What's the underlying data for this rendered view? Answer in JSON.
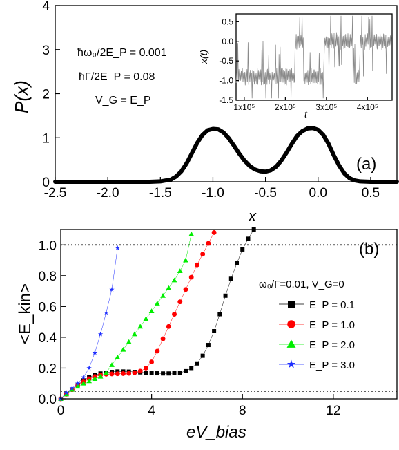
{
  "chart_data": [
    {
      "panel": "a",
      "type": "line",
      "panel_label": "(a)",
      "xlabel": "x",
      "ylabel": "P(x)",
      "xlim": [
        -2.5,
        0.75
      ],
      "ylim": [
        0,
        4
      ],
      "xticks": [
        -2.5,
        -2.0,
        -1.5,
        -1.0,
        -0.5,
        0.0,
        0.5
      ],
      "xtick_labels": [
        "-2.5",
        "-2.0",
        "-1.5",
        "-1.0",
        "-0.5",
        "0.0",
        "0.5"
      ],
      "yticks": [
        0,
        1,
        2,
        3,
        4
      ],
      "ytick_labels": [
        "0",
        "1",
        "2",
        "3",
        "4"
      ],
      "annotations": [
        "ħω₀/2E_P = 0.001",
        "ħΓ/2E_P = 0.08",
        "V_G = E_P"
      ],
      "series": [
        {
          "x": [
            -2.5,
            -1.6,
            -1.5,
            -1.4,
            -1.35,
            -1.3,
            -1.25,
            -1.2,
            -1.15,
            -1.1,
            -1.05,
            -1.0,
            -0.95,
            -0.9,
            -0.85,
            -0.8,
            -0.75,
            -0.7,
            -0.65,
            -0.6,
            -0.55,
            -0.5,
            -0.45,
            -0.4,
            -0.35,
            -0.3,
            -0.25,
            -0.2,
            -0.15,
            -0.1,
            -0.05,
            0.0,
            0.05,
            0.1,
            0.15,
            0.2,
            0.25,
            0.3,
            0.35,
            0.4,
            0.5,
            0.6,
            0.75
          ],
          "y": [
            0.0,
            0.0,
            0.01,
            0.05,
            0.12,
            0.24,
            0.42,
            0.65,
            0.88,
            1.06,
            1.17,
            1.2,
            1.19,
            1.12,
            0.99,
            0.82,
            0.64,
            0.48,
            0.36,
            0.28,
            0.24,
            0.23,
            0.26,
            0.34,
            0.48,
            0.66,
            0.86,
            1.04,
            1.15,
            1.21,
            1.22,
            1.18,
            1.06,
            0.86,
            0.6,
            0.37,
            0.19,
            0.08,
            0.03,
            0.01,
            0.0,
            0.0,
            0.0
          ]
        }
      ],
      "inset": {
        "type": "line",
        "xlabel": "t",
        "ylabel": "x(t)",
        "xlim": [
          80000,
          460000
        ],
        "ylim": [
          -1.5,
          0.7
        ],
        "xticks": [
          100000,
          200000,
          300000,
          400000
        ],
        "xtick_labels": [
          "1x10⁵",
          "2x10⁵",
          "3x10⁵",
          "4x10⁵"
        ],
        "yticks": [
          0.5,
          0.0,
          -0.5,
          -1.0,
          -1.5
        ],
        "ytick_labels": [
          "0.5",
          "0.0",
          "-0.5",
          "-1.0",
          "-1.5"
        ],
        "color": "#8a8a8a",
        "level_segments": [
          {
            "t0": 80000,
            "t1": 225000,
            "level": -0.9
          },
          {
            "t0": 225000,
            "t1": 245000,
            "level": 0.0
          },
          {
            "t0": 245000,
            "t1": 295000,
            "level": -0.9
          },
          {
            "t0": 295000,
            "t1": 365000,
            "level": 0.0
          },
          {
            "t0": 365000,
            "t1": 382000,
            "level": -0.9
          },
          {
            "t0": 382000,
            "t1": 460000,
            "level": 0.0
          }
        ]
      }
    },
    {
      "panel": "b",
      "type": "scatter",
      "panel_label": "(b)",
      "xlabel": "eV_bias",
      "ylabel": "<E_kin>",
      "xlim": [
        0,
        14.8
      ],
      "ylim": [
        0,
        1.1
      ],
      "xticks": [
        0,
        4,
        8,
        12
      ],
      "xtick_labels": [
        "0",
        "4",
        "8",
        "12"
      ],
      "yticks": [
        0.0,
        0.2,
        0.4,
        0.6,
        0.8,
        1.0
      ],
      "ytick_labels": [
        "0.0",
        "0.2",
        "0.4",
        "0.6",
        "0.8",
        "1.0"
      ],
      "hlines": [
        1.0,
        0.05
      ],
      "legend_title": "ω₀/Γ=0.01, V_G=0",
      "legend_position": "right",
      "series": [
        {
          "name": "E_P = 0.1",
          "marker": "square",
          "color": "#000000",
          "x": [
            0.0,
            0.25,
            0.5,
            0.75,
            1.0,
            1.25,
            1.5,
            1.75,
            2.0,
            2.25,
            2.5,
            2.75,
            3.0,
            3.25,
            3.5,
            3.75,
            4.0,
            4.25,
            4.5,
            4.75,
            5.0,
            5.25,
            5.5,
            5.75,
            6.0,
            6.25,
            6.5,
            6.75,
            7.0,
            7.25,
            7.5,
            7.75,
            8.0,
            8.25,
            8.5
          ],
          "y": [
            0.0,
            0.03,
            0.06,
            0.09,
            0.12,
            0.14,
            0.155,
            0.165,
            0.17,
            0.175,
            0.178,
            0.178,
            0.177,
            0.175,
            0.172,
            0.17,
            0.168,
            0.166,
            0.165,
            0.165,
            0.167,
            0.17,
            0.18,
            0.2,
            0.23,
            0.28,
            0.35,
            0.44,
            0.55,
            0.67,
            0.78,
            0.88,
            0.97,
            1.04,
            1.1
          ]
        },
        {
          "name": "E_P = 1.0",
          "marker": "circle",
          "color": "#ff0000",
          "x": [
            0.0,
            0.25,
            0.5,
            0.75,
            1.0,
            1.25,
            1.5,
            1.75,
            2.0,
            2.25,
            2.5,
            2.75,
            3.0,
            3.25,
            3.5,
            3.75,
            4.0,
            4.25,
            4.5,
            4.75,
            5.0,
            5.25,
            5.5,
            5.75,
            6.0,
            6.25,
            6.5,
            6.75
          ],
          "y": [
            0.0,
            0.03,
            0.06,
            0.09,
            0.11,
            0.13,
            0.145,
            0.155,
            0.16,
            0.162,
            0.163,
            0.164,
            0.166,
            0.17,
            0.18,
            0.2,
            0.24,
            0.31,
            0.39,
            0.47,
            0.55,
            0.63,
            0.71,
            0.79,
            0.87,
            0.94,
            1.01,
            1.08
          ]
        },
        {
          "name": "E_P = 2.0",
          "marker": "triangle",
          "color": "#00ee00",
          "x": [
            0.0,
            0.25,
            0.5,
            0.75,
            1.0,
            1.25,
            1.5,
            1.75,
            2.0,
            2.25,
            2.5,
            2.75,
            3.0,
            3.25,
            3.5,
            3.75,
            4.0,
            4.25,
            4.5,
            4.75,
            5.0,
            5.25,
            5.5,
            5.75
          ],
          "y": [
            0.0,
            0.03,
            0.06,
            0.08,
            0.1,
            0.115,
            0.13,
            0.145,
            0.17,
            0.22,
            0.27,
            0.32,
            0.37,
            0.42,
            0.47,
            0.52,
            0.57,
            0.62,
            0.67,
            0.72,
            0.77,
            0.83,
            0.9,
            1.07
          ]
        },
        {
          "name": "E_P = 3.0",
          "marker": "star",
          "color": "#1f2fff",
          "x": [
            0.0,
            0.25,
            0.5,
            0.75,
            1.0,
            1.25,
            1.5,
            1.75,
            2.0,
            2.25,
            2.5
          ],
          "y": [
            0.0,
            0.04,
            0.07,
            0.1,
            0.14,
            0.2,
            0.3,
            0.42,
            0.56,
            0.71,
            0.98
          ]
        }
      ]
    }
  ]
}
